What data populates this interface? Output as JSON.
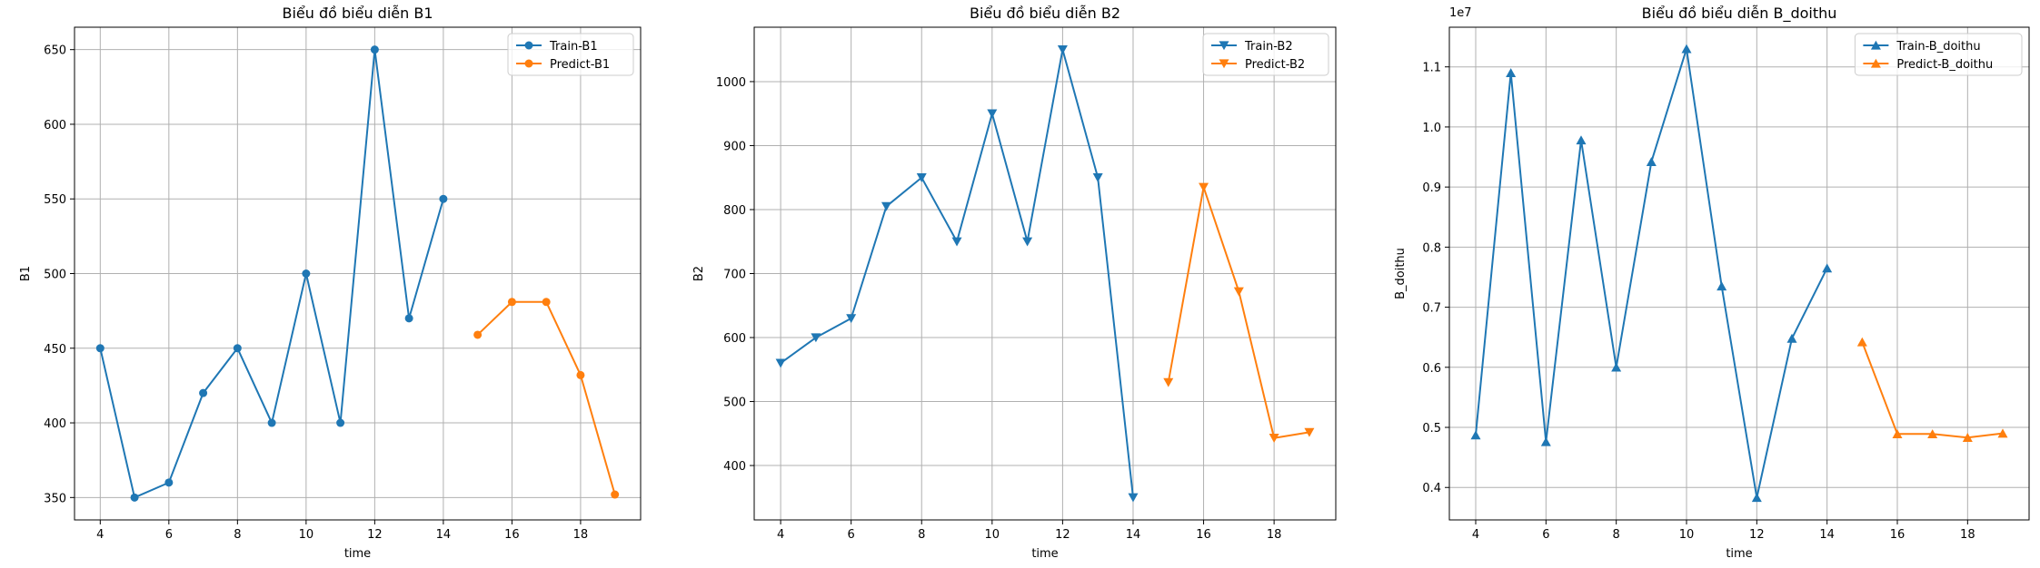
{
  "chart_data": [
    {
      "type": "line",
      "title": "Biểu đồ biểu diễn B1",
      "xlabel": "time",
      "ylabel": "B1",
      "xlim": [
        3.25,
        19.75
      ],
      "ylim": [
        335,
        665
      ],
      "xticks": [
        4,
        6,
        8,
        10,
        12,
        14,
        16,
        18
      ],
      "yticks": [
        350,
        400,
        450,
        500,
        550,
        600,
        650
      ],
      "ytick_format": "int",
      "offset_label": "",
      "grid": true,
      "legend": "top-right",
      "marker": "circle",
      "series": [
        {
          "name": "Train-B1",
          "color": "#1f77b4",
          "x": [
            4,
            5,
            6,
            7,
            8,
            9,
            10,
            11,
            12,
            13,
            14
          ],
          "y": [
            450,
            350,
            360,
            420,
            450,
            400,
            500,
            400,
            650,
            470,
            550
          ]
        },
        {
          "name": "Predict-B1",
          "color": "#ff7f0e",
          "x": [
            15,
            16,
            17,
            18,
            19
          ],
          "y": [
            459,
            481,
            481,
            432,
            352
          ]
        }
      ]
    },
    {
      "type": "line",
      "title": "Biểu đồ biểu diễn B2",
      "xlabel": "time",
      "ylabel": "B2",
      "xlim": [
        3.25,
        19.75
      ],
      "ylim": [
        315,
        1085
      ],
      "xticks": [
        4,
        6,
        8,
        10,
        12,
        14,
        16,
        18
      ],
      "yticks": [
        400,
        500,
        600,
        700,
        800,
        900,
        1000
      ],
      "ytick_format": "int",
      "offset_label": "",
      "grid": true,
      "legend": "top-right",
      "marker": "triangle-down",
      "series": [
        {
          "name": "Train-B2",
          "color": "#1f77b4",
          "x": [
            4,
            5,
            6,
            7,
            8,
            9,
            10,
            11,
            12,
            13,
            14
          ],
          "y": [
            560,
            600,
            630,
            805,
            850,
            750,
            950,
            750,
            1050,
            850,
            350
          ]
        },
        {
          "name": "Predict-B2",
          "color": "#ff7f0e",
          "x": [
            15,
            16,
            17,
            18,
            19
          ],
          "y": [
            530,
            835,
            672,
            443,
            452
          ]
        }
      ]
    },
    {
      "type": "line",
      "title": "Biểu đồ biểu diễn B_doithu",
      "xlabel": "time",
      "ylabel": "B_doithu",
      "xlim": [
        3.25,
        19.75
      ],
      "ylim": [
        3460000,
        11660000
      ],
      "xticks": [
        4,
        6,
        8,
        10,
        12,
        14,
        16,
        18
      ],
      "yticks": [
        4000000,
        5000000,
        6000000,
        7000000,
        8000000,
        9000000,
        10000000,
        11000000
      ],
      "ytick_labels": [
        "0.4",
        "0.5",
        "0.6",
        "0.7",
        "0.8",
        "0.9",
        "1.0",
        "1.1"
      ],
      "ytick_format": "labels",
      "offset_label": "1e7",
      "grid": true,
      "legend": "top-right",
      "marker": "triangle-up",
      "series": [
        {
          "name": "Train-B_doithu",
          "color": "#1f77b4",
          "x": [
            4,
            5,
            6,
            7,
            8,
            9,
            10,
            11,
            12,
            13,
            14
          ],
          "y": [
            4870000,
            10900000,
            4760000,
            9780000,
            6000000,
            9420000,
            11300000,
            7350000,
            3830000,
            6480000,
            7650000
          ]
        },
        {
          "name": "Predict-B_doithu",
          "color": "#ff7f0e",
          "x": [
            15,
            16,
            17,
            18,
            19
          ],
          "y": [
            6420000,
            4890000,
            4890000,
            4830000,
            4900000
          ]
        }
      ]
    }
  ]
}
